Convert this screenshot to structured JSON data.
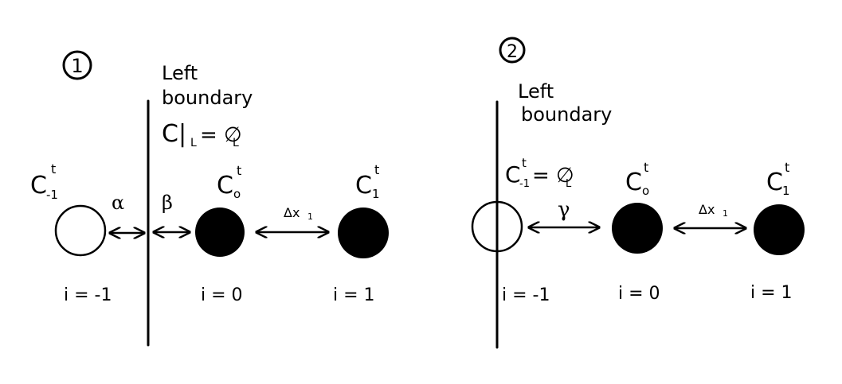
{
  "colors": {
    "ink": "#000000",
    "background": "#ffffff",
    "filled_node": "#000000",
    "ghost_node": "#ffffff"
  },
  "panel1": {
    "number": "1",
    "boundary_label_line1": "Left",
    "boundary_label_line2": "boundary",
    "boundary_condition_main": "C|",
    "boundary_condition_sub": "L",
    "boundary_condition_eq": "= ∅",
    "boundary_condition_eq_sub": "L",
    "nodes": [
      {
        "symbol": "C",
        "superscript": "t",
        "subscript": "-1",
        "index_label": "i = -1",
        "filled": false
      },
      {
        "symbol": "C",
        "superscript": "t",
        "subscript": "o",
        "index_label": "i = 0",
        "filled": true
      },
      {
        "symbol": "C",
        "superscript": "t",
        "subscript": "1",
        "index_label": "i = 1",
        "filled": true
      }
    ],
    "alpha_label": "α",
    "beta_label": "β",
    "dx_label": "Δx",
    "dx_sub": "1"
  },
  "panel2": {
    "number": "2",
    "boundary_label_line1": "Left",
    "boundary_label_line2": "boundary",
    "ghost_eq": "= ∅",
    "ghost_eq_sub": "L",
    "nodes": [
      {
        "symbol": "C",
        "superscript": "t",
        "subscript": "-1",
        "index_label": "i = -1",
        "filled": false
      },
      {
        "symbol": "C",
        "superscript": "t",
        "subscript": "o",
        "index_label": "i = 0",
        "filled": true
      },
      {
        "symbol": "C",
        "superscript": "t",
        "subscript": "1",
        "index_label": "i = 1",
        "filled": true
      }
    ],
    "gamma_label": "γ",
    "dx_label": "Δx",
    "dx_sub": "1"
  }
}
